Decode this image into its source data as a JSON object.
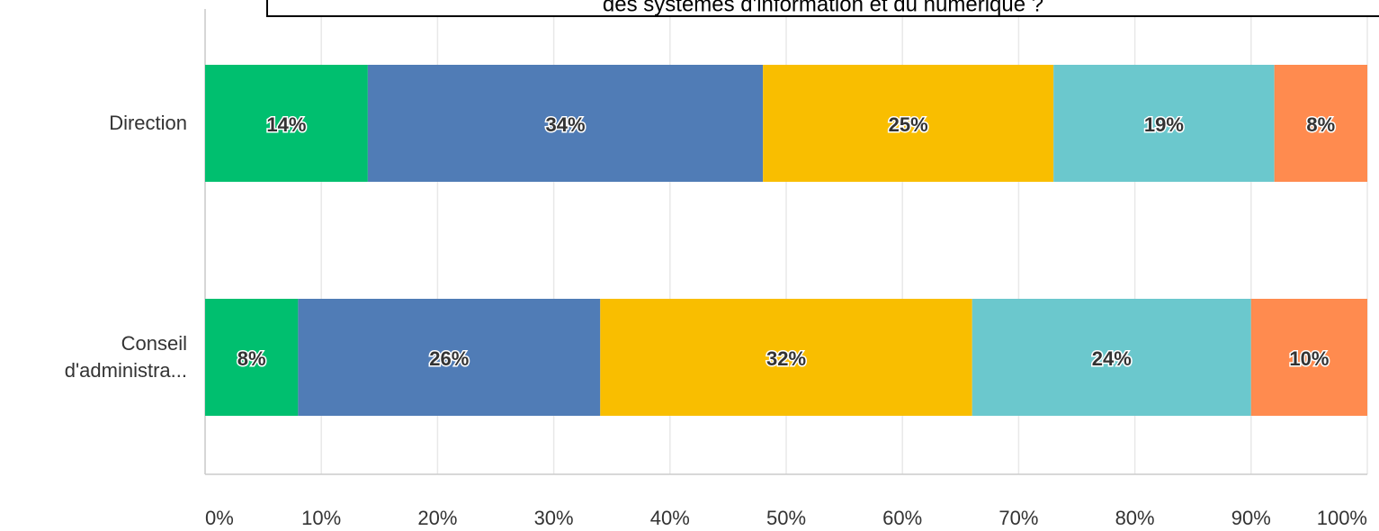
{
  "chart_data": {
    "type": "stacked_barh",
    "title": "des systèmes d'information et du numérique ?",
    "categories": [
      "Direction",
      "Conseil d'administra..."
    ],
    "series": [
      {
        "color": "#00bf6f",
        "values": [
          14,
          8
        ],
        "value_labels": [
          "14%",
          "8%"
        ]
      },
      {
        "color": "#507cb6",
        "values": [
          34,
          26
        ],
        "value_labels": [
          "34%",
          "26%"
        ]
      },
      {
        "color": "#f9be00",
        "values": [
          25,
          32
        ],
        "value_labels": [
          "25%",
          "32%"
        ]
      },
      {
        "color": "#6bc8cd",
        "values": [
          19,
          24
        ],
        "value_labels": [
          "19%",
          "24%"
        ]
      },
      {
        "color": "#ff8b4f",
        "values": [
          8,
          10
        ],
        "value_labels": [
          "8%",
          "10%"
        ]
      }
    ],
    "xlim": [
      0,
      100
    ],
    "xticks": [
      {
        "value": 0,
        "label": "0%"
      },
      {
        "value": 10,
        "label": "10%"
      },
      {
        "value": 20,
        "label": "20%"
      },
      {
        "value": 30,
        "label": "30%"
      },
      {
        "value": 40,
        "label": "40%"
      },
      {
        "value": 50,
        "label": "50%"
      },
      {
        "value": 60,
        "label": "60%"
      },
      {
        "value": 70,
        "label": "70%"
      },
      {
        "value": 80,
        "label": "80%"
      },
      {
        "value": 90,
        "label": "90%"
      },
      {
        "value": 100,
        "label": "100%"
      }
    ],
    "grid": true
  }
}
